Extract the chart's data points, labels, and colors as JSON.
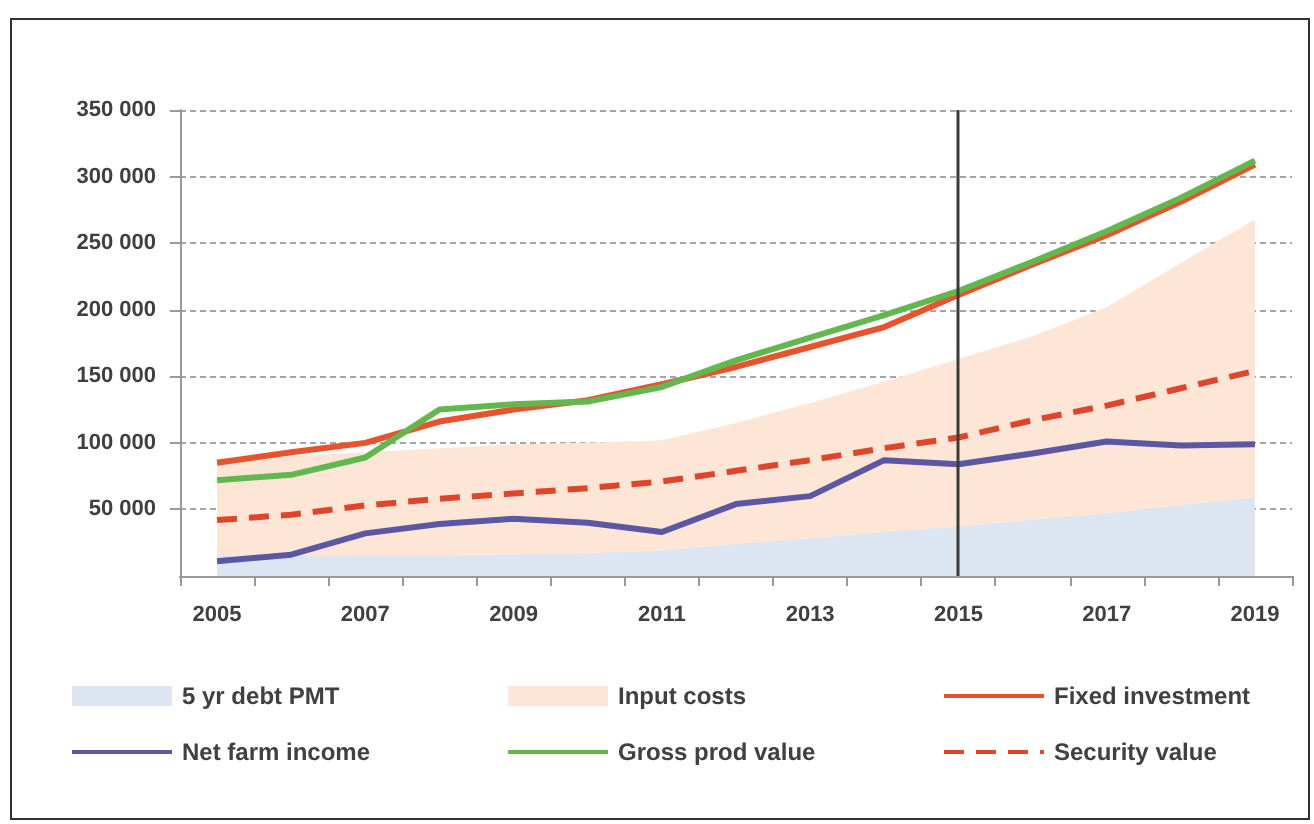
{
  "chart_data": {
    "type": "line",
    "categories": [
      "2005",
      null,
      "2007",
      null,
      "2009",
      null,
      "2011",
      null,
      "2013",
      null,
      "2015",
      null,
      "2017",
      null,
      "2019"
    ],
    "series": [
      {
        "name": "5 yr debt PMT",
        "type": "area",
        "color": "#dce6f2",
        "values": [
          15000,
          15000,
          15000,
          15000,
          16000,
          17000,
          19000,
          24000,
          28000,
          33000,
          37000,
          42000,
          47000,
          53000,
          59000
        ]
      },
      {
        "name": "Input costs",
        "type": "area",
        "color": "#fde6d6",
        "values": [
          88000,
          90000,
          93000,
          96000,
          99000,
          100000,
          102000,
          115000,
          130000,
          146000,
          163000,
          180000,
          202000,
          235000,
          268000
        ]
      },
      {
        "name": "Fixed investment",
        "color": "#e8522c",
        "values": [
          85000,
          93000,
          100000,
          116000,
          125000,
          132000,
          144000,
          157000,
          172000,
          187000,
          211000,
          234000,
          256000,
          281000,
          309000
        ]
      },
      {
        "name": "Net farm income",
        "color": "#5b57a3",
        "values": [
          11000,
          16000,
          32000,
          39000,
          43000,
          40000,
          33000,
          54000,
          60000,
          87000,
          84000,
          92000,
          101000,
          98000,
          99000
        ]
      },
      {
        "name": "Gross prod value",
        "color": "#62b84f",
        "values": [
          72000,
          76000,
          89000,
          125000,
          129000,
          131000,
          142000,
          162000,
          179000,
          196000,
          214000,
          236000,
          259000,
          284000,
          312000
        ]
      },
      {
        "name": "Security value",
        "color": "#e0452c",
        "line_style": "dashed",
        "values": [
          42000,
          46000,
          53000,
          58000,
          62000,
          66000,
          71000,
          79000,
          87000,
          96000,
          104000,
          117000,
          128000,
          141000,
          154000
        ]
      }
    ],
    "ylim": [
      0,
      350000
    ],
    "yticks": [
      {
        "value": 50000,
        "label": "50 000"
      },
      {
        "value": 100000,
        "label": "100 000"
      },
      {
        "value": 150000,
        "label": "150 000"
      },
      {
        "value": 200000,
        "label": "200 000"
      },
      {
        "value": 250000,
        "label": "250 000"
      },
      {
        "value": 300000,
        "label": "300 000"
      },
      {
        "value": 350000,
        "label": "350 000"
      }
    ],
    "grid": "y",
    "legend": "bottom",
    "marker": "none",
    "ref_lines": [
      {
        "axis": "x",
        "value": "2015",
        "color": "#3a3a3a"
      }
    ]
  }
}
